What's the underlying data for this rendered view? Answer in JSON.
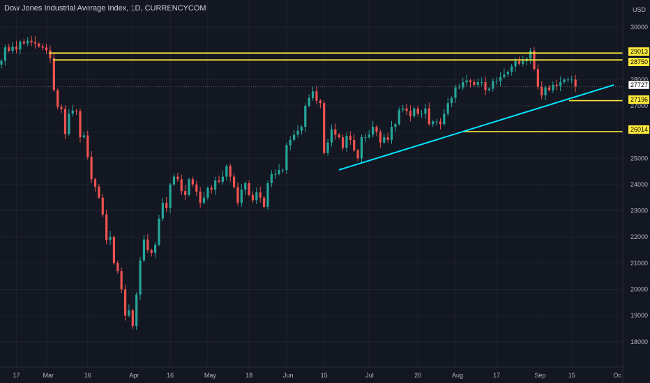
{
  "chart_data": {
    "type": "candlestick",
    "title": "Dow Jones Industrial Average Index, 1D, CURRENCYCOM",
    "currency": "USD",
    "ylim": [
      17600,
      30600
    ],
    "y_ticks": [
      18000,
      19000,
      20000,
      21000,
      22000,
      23000,
      24000,
      25000,
      26000,
      27000,
      28000,
      29000,
      30000
    ],
    "x_ticks": [
      {
        "label": "17",
        "index": 4
      },
      {
        "label": "Mar",
        "index": 12
      },
      {
        "label": "16",
        "index": 23
      },
      {
        "label": "Apr",
        "index": 35
      },
      {
        "label": "16",
        "index": 45
      },
      {
        "label": "May",
        "index": 55
      },
      {
        "label": "18",
        "index": 66
      },
      {
        "label": "Jun",
        "index": 76
      },
      {
        "label": "15",
        "index": 86
      },
      {
        "label": "Jul",
        "index": 98
      },
      {
        "label": "20",
        "index": 111
      },
      {
        "label": "Aug",
        "index": 121
      },
      {
        "label": "17",
        "index": 132
      },
      {
        "label": "Sep",
        "index": 143
      },
      {
        "label": "15",
        "index": 152
      },
      {
        "label": "Oc",
        "index": 164
      }
    ],
    "closes": [
      28720,
      29230,
      29100,
      29260,
      29150,
      29450,
      29380,
      29480,
      29430,
      29370,
      29270,
      29220,
      29120,
      28820,
      27600,
      26960,
      26880,
      25920,
      26700,
      26820,
      26800,
      25800,
      25870,
      25050,
      24200,
      23920,
      23500,
      22850,
      21880,
      22000,
      21000,
      20700,
      20000,
      19000,
      19200,
      18600,
      19800,
      21100,
      21900,
      21500,
      21400,
      21700,
      22700,
      23300,
      23100,
      24000,
      24300,
      24200,
      23750,
      23600,
      24200,
      24000,
      23720,
      23300,
      23500,
      23870,
      23800,
      24150,
      24100,
      24300,
      24700,
      24300,
      23900,
      23300,
      23800,
      24050,
      23600,
      23400,
      23700,
      23500,
      23150,
      24050,
      24400,
      24400,
      24550,
      24550,
      25500,
      25700,
      25900,
      26050,
      26200,
      27000,
      27300,
      27550,
      27200,
      27100,
      25200,
      25600,
      26100,
      25900,
      25800,
      25400,
      25850,
      25700,
      25300,
      25000,
      25800,
      25800,
      25900,
      26200,
      26000,
      25600,
      25800,
      25700,
      26200,
      26300,
      26850,
      26900,
      26800,
      26600,
      26900,
      26700,
      26700,
      26900,
      26300,
      26400,
      26400,
      26300,
      26700,
      27100,
      27300,
      27700,
      27700,
      27900,
      27970,
      27900,
      27800,
      27900,
      27900,
      27600,
      27650,
      27950,
      27950,
      28100,
      28200,
      28300,
      28500,
      28700,
      28600,
      28700,
      28800,
      29100,
      28400,
      27720,
      27400,
      27700,
      27600,
      27800,
      27750,
      27900,
      28000,
      28000,
      28000,
      27727
    ],
    "horizontal_levels": [
      29013,
      28750,
      27196,
      26014
    ],
    "last_price": 27727,
    "price_tags": [
      "29013",
      "28750",
      "27727",
      "27196",
      "26014"
    ],
    "trendline": {
      "start_index": 86,
      "start_price": 24500,
      "end_index": 159,
      "end_price": 27760
    },
    "colors": {
      "background": "#131722",
      "grid": "#1e222d",
      "up": "#26a69a",
      "down": "#ef5350",
      "level": "#ffeb3b",
      "trendline": "#00e5ff",
      "text": "#b2b5be"
    }
  }
}
